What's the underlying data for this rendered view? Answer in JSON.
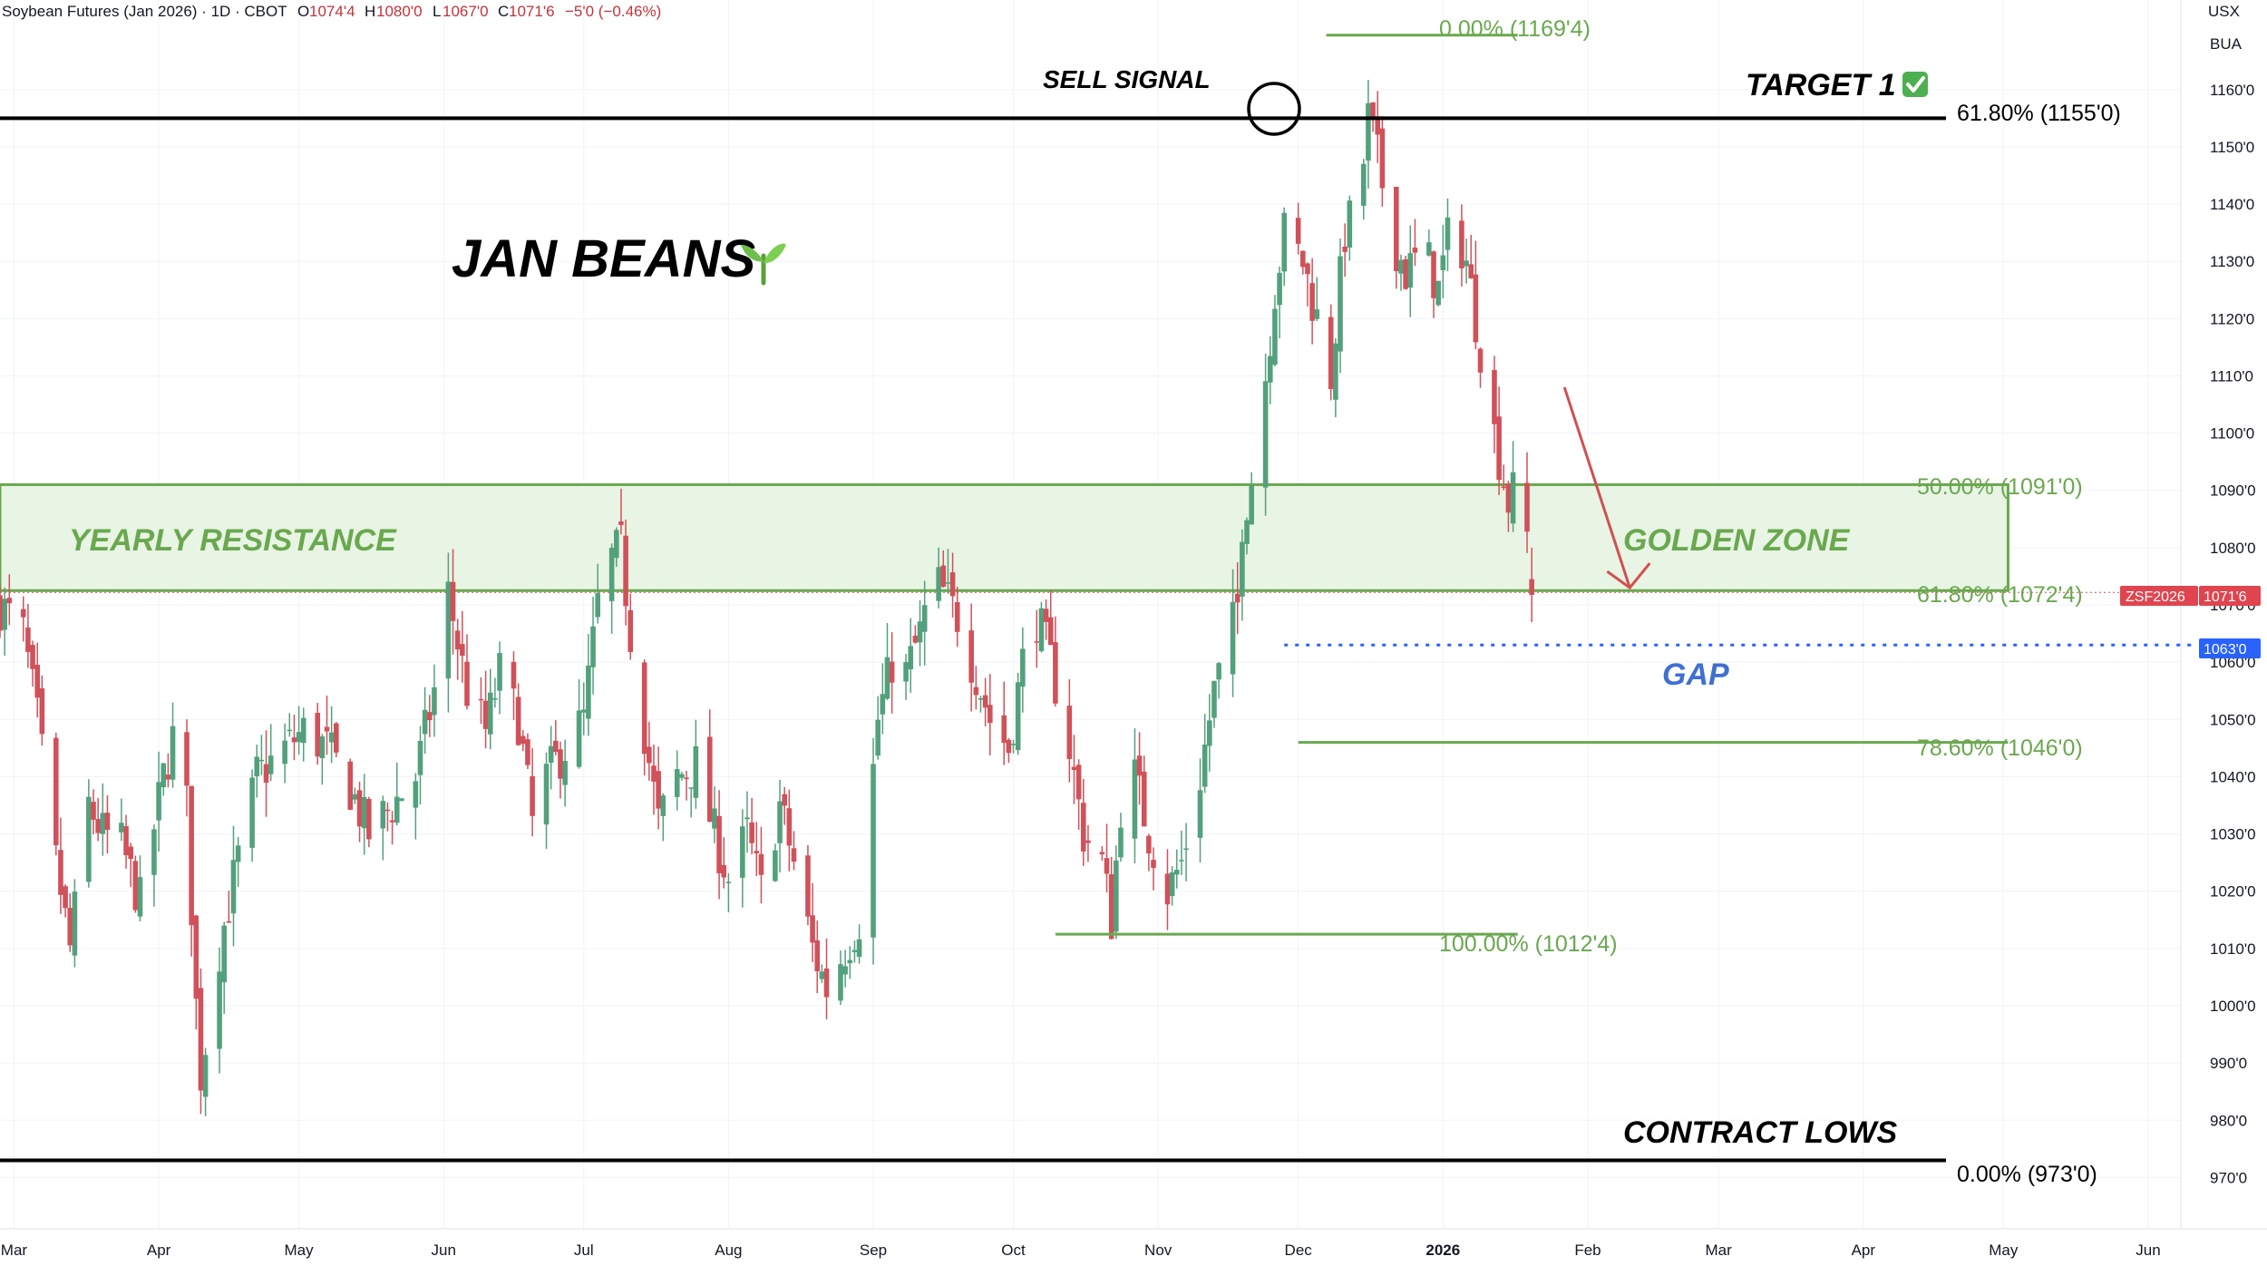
{
  "header": {
    "symbol_title": "Soybean Futures (Jan 2026) · 1D · CBOT",
    "open_label": "O",
    "open_value": "1074'4",
    "high_label": "H",
    "high_value": "1080'0",
    "low_label": "L",
    "low_value": "1067'0",
    "close_label": "C",
    "close_value": "1071'6",
    "change_value": "−5'0 (−0.46%)"
  },
  "axis": {
    "currency": "USX",
    "unit": "BUA",
    "price_ticks": [
      "1160'0",
      "1150'0",
      "1140'0",
      "1130'0",
      "1120'0",
      "1110'0",
      "1100'0",
      "1090'0",
      "1080'0",
      "1070'0",
      "1060'0",
      "1050'0",
      "1040'0",
      "1030'0",
      "1020'0",
      "1010'0",
      "1000'0",
      "990'0",
      "980'0",
      "970'0"
    ],
    "months": [
      "Mar",
      "Apr",
      "May",
      "Jun",
      "Jul",
      "Aug",
      "Sep",
      "Oct",
      "Nov",
      "Dec",
      "2026",
      "Feb",
      "Mar",
      "Apr",
      "May",
      "Jun"
    ],
    "price_tag_symbol": "ZSF2026",
    "price_tag_value": "1071'6",
    "gap_tag_value": "1063'0"
  },
  "annotations": {
    "title": "JAN BEANS",
    "title_icon": "seedling-icon",
    "sell_signal": "SELL SIGNAL",
    "target": "TARGET 1",
    "target_icon": "checkmark-icon",
    "yearly_resistance": "YEARLY RESISTANCE",
    "golden_zone": "GOLDEN ZONE",
    "gap": "GAP",
    "contract_lows": "CONTRACT LOWS"
  },
  "fib_levels": {
    "top_0": "0.00% (1169'4)",
    "zone_50": "50.00% (1091'0)",
    "zone_618": "61.80% (1072'4)",
    "retr_786": "78.60% (1046'0)",
    "retr_100": "100.00% (1012'4)",
    "major_618": "61.80% (1155'0)",
    "major_0": "0.00% (973'0)"
  },
  "colors": {
    "up": "#53a07d",
    "down": "#d0515a",
    "fib_green": "#6aa84f",
    "zone_fill": "#e8f4e4",
    "gap_blue": "#2962ff",
    "tag_red": "#e0454f",
    "black": "#000000"
  },
  "chart_data": {
    "type": "candlestick",
    "title": "Soybean Futures (Jan 2026) · 1D · CBOT",
    "y_unit": "USX",
    "ylim": [
      965,
      1172
    ],
    "x_range": [
      "2025-02-26",
      "2026-06-08"
    ],
    "grid": true,
    "x_ticks": [
      {
        "label": "Mar",
        "date": "2025-03-01"
      },
      {
        "label": "Apr",
        "date": "2025-04-01"
      },
      {
        "label": "May",
        "date": "2025-05-01"
      },
      {
        "label": "Jun",
        "date": "2025-06-01"
      },
      {
        "label": "Jul",
        "date": "2025-07-01"
      },
      {
        "label": "Aug",
        "date": "2025-08-01"
      },
      {
        "label": "Sep",
        "date": "2025-09-01"
      },
      {
        "label": "Oct",
        "date": "2025-10-01"
      },
      {
        "label": "Nov",
        "date": "2025-11-01"
      },
      {
        "label": "Dec",
        "date": "2025-12-01"
      },
      {
        "label": "2026",
        "date": "2026-01-01"
      },
      {
        "label": "Feb",
        "date": "2026-02-01"
      },
      {
        "label": "Mar",
        "date": "2026-03-01"
      },
      {
        "label": "Apr",
        "date": "2026-04-01"
      },
      {
        "label": "May",
        "date": "2026-05-01"
      },
      {
        "label": "Jun",
        "date": "2026-06-01"
      }
    ],
    "anchors": [
      [
        "2025-02-26",
        1070
      ],
      [
        "2025-03-03",
        1065
      ],
      [
        "2025-03-06",
        1050
      ],
      [
        "2025-03-10",
        1025
      ],
      [
        "2025-03-13",
        1010
      ],
      [
        "2025-03-17",
        1035
      ],
      [
        "2025-03-20",
        1030
      ],
      [
        "2025-03-24",
        1028
      ],
      [
        "2025-03-28",
        1018
      ],
      [
        "2025-04-02",
        1040
      ],
      [
        "2025-04-05",
        1050
      ],
      [
        "2025-04-07",
        1035
      ],
      [
        "2025-04-09",
        1000
      ],
      [
        "2025-04-10",
        988
      ],
      [
        "2025-04-14",
        1010
      ],
      [
        "2025-04-17",
        1022
      ],
      [
        "2025-04-22",
        1040
      ],
      [
        "2025-04-28",
        1045
      ],
      [
        "2025-05-02",
        1048
      ],
      [
        "2025-05-07",
        1045
      ],
      [
        "2025-05-12",
        1038
      ],
      [
        "2025-05-16",
        1030
      ],
      [
        "2025-05-21",
        1035
      ],
      [
        "2025-05-26",
        1040
      ],
      [
        "2025-05-30",
        1055
      ],
      [
        "2025-06-02",
        1072
      ],
      [
        "2025-06-06",
        1055
      ],
      [
        "2025-06-10",
        1048
      ],
      [
        "2025-06-13",
        1058
      ],
      [
        "2025-06-17",
        1050
      ],
      [
        "2025-06-20",
        1032
      ],
      [
        "2025-06-23",
        1040
      ],
      [
        "2025-06-27",
        1045
      ],
      [
        "2025-07-01",
        1050
      ],
      [
        "2025-07-04",
        1070
      ],
      [
        "2025-07-07",
        1078
      ],
      [
        "2025-07-09",
        1080
      ],
      [
        "2025-07-11",
        1065
      ],
      [
        "2025-07-14",
        1048
      ],
      [
        "2025-07-17",
        1032
      ],
      [
        "2025-07-21",
        1040
      ],
      [
        "2025-07-25",
        1042
      ],
      [
        "2025-07-29",
        1030
      ],
      [
        "2025-08-01",
        1022
      ],
      [
        "2025-08-05",
        1030
      ],
      [
        "2025-08-08",
        1020
      ],
      [
        "2025-08-12",
        1035
      ],
      [
        "2025-08-15",
        1025
      ],
      [
        "2025-08-19",
        1010
      ],
      [
        "2025-08-22",
        1003
      ],
      [
        "2025-08-26",
        1010
      ],
      [
        "2025-08-29",
        1015
      ],
      [
        "2025-09-02",
        1050
      ],
      [
        "2025-09-05",
        1060
      ],
      [
        "2025-09-08",
        1058
      ],
      [
        "2025-09-11",
        1065
      ],
      [
        "2025-09-14",
        1075
      ],
      [
        "2025-09-16",
        1072
      ],
      [
        "2025-09-19",
        1068
      ],
      [
        "2025-09-23",
        1058
      ],
      [
        "2025-09-26",
        1050
      ],
      [
        "2025-09-30",
        1045
      ],
      [
        "2025-10-03",
        1060
      ],
      [
        "2025-10-06",
        1068
      ],
      [
        "2025-10-09",
        1060
      ],
      [
        "2025-10-13",
        1045
      ],
      [
        "2025-10-16",
        1030
      ],
      [
        "2025-10-20",
        1025
      ],
      [
        "2025-10-22",
        1015
      ],
      [
        "2025-10-24",
        1035
      ],
      [
        "2025-10-27",
        1040
      ],
      [
        "2025-10-30",
        1030
      ],
      [
        "2025-11-03",
        1020
      ],
      [
        "2025-11-06",
        1025
      ],
      [
        "2025-11-10",
        1040
      ],
      [
        "2025-11-13",
        1055
      ],
      [
        "2025-11-15",
        1060
      ],
      [
        "2025-11-18",
        1070
      ],
      [
        "2025-11-19",
        1085
      ],
      [
        "2025-11-21",
        1092
      ],
      [
        "2025-11-24",
        1110
      ],
      [
        "2025-11-26",
        1125
      ],
      [
        "2025-11-28",
        1135
      ],
      [
        "2025-12-02",
        1130
      ],
      [
        "2025-12-05",
        1120
      ],
      [
        "2025-12-08",
        1110
      ],
      [
        "2025-12-11",
        1135
      ],
      [
        "2025-12-14",
        1140
      ],
      [
        "2025-12-16",
        1155
      ],
      [
        "2025-12-18",
        1148
      ],
      [
        "2025-12-21",
        1135
      ],
      [
        "2025-12-24",
        1128
      ],
      [
        "2025-12-28",
        1132
      ],
      [
        "2025-12-31",
        1125
      ],
      [
        "2026-01-03",
        1138
      ],
      [
        "2026-01-06",
        1130
      ],
      [
        "2026-01-09",
        1115
      ],
      [
        "2026-01-12",
        1100
      ],
      [
        "2026-01-15",
        1088
      ],
      [
        "2026-01-18",
        1092
      ],
      [
        "2026-01-20",
        1071.75
      ]
    ],
    "series": [
      {
        "name": "Soybean Futures (Jan 2026)",
        "last_close": 1071.75,
        "last_open": 1074.5,
        "last_high": 1080.0,
        "last_low": 1067.0
      }
    ],
    "fib_levels": [
      {
        "label": "0.00% (1169'4)",
        "value": 1169.5,
        "x_from": "2025-12-07",
        "x_to": "2026-01-17"
      },
      {
        "label": "50.00% (1091'0)",
        "value": 1091.0,
        "zone_top": true
      },
      {
        "label": "61.80% (1072'4)",
        "value": 1072.5,
        "zone_bottom": true
      },
      {
        "label": "78.60% (1046'0)",
        "value": 1046.0,
        "x_from": "2025-12-01",
        "x_to": "2026-05-02"
      },
      {
        "label": "100.00% (1012'4)",
        "value": 1012.5,
        "x_from": "2025-10-10",
        "x_to": "2026-01-17"
      },
      {
        "label": "61.80% (1155'0)",
        "value": 1155.0
      },
      {
        "label": "0.00% (973'0)",
        "value": 973.0
      }
    ],
    "zone": {
      "from": 1072.5,
      "to": 1091.0,
      "x_from": "2025-02-26",
      "x_to": "2026-05-02"
    },
    "gap_level": {
      "value": 1063.0,
      "x_from": "2025-11-28"
    },
    "sell_signal_point": {
      "date": "2025-12-16",
      "value": 1155
    },
    "arrow": {
      "from": {
        "date": "2026-01-27",
        "value": 1108
      },
      "to": {
        "date": "2026-02-10",
        "value": 1073
      }
    }
  }
}
